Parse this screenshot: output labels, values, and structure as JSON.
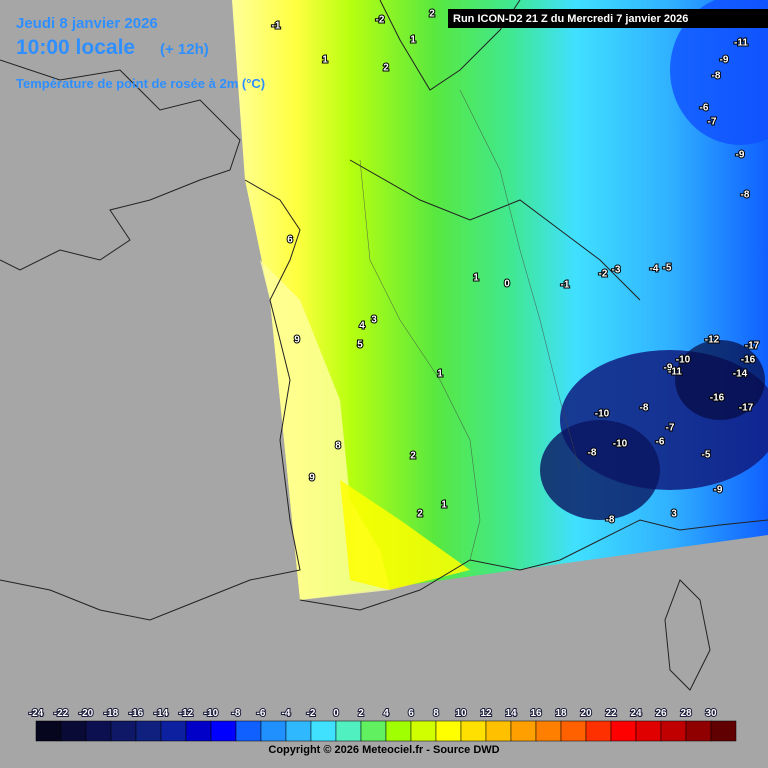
{
  "header": {
    "date": "Jeudi 8 janvier 2026",
    "time": "10:00 locale",
    "lead": "(+ 12h)",
    "variable": "Température de point de rosée à 2m (°C)"
  },
  "run_info": "Run ICON-D2 21 Z du Mercredi 7 janvier 2026",
  "contour_labels": [
    2,
    -1,
    1,
    1,
    2,
    -2,
    6,
    9,
    8,
    9,
    4,
    3,
    5,
    1,
    1,
    0,
    -1,
    -2,
    -3,
    -4,
    -5,
    -11,
    -9,
    -8,
    -6,
    -7,
    -9,
    -8,
    -10,
    -9,
    -11,
    -12,
    -17,
    -16,
    -14,
    -16,
    -17,
    -8,
    -10,
    -7,
    -10,
    -6,
    -8,
    -5,
    -9,
    -8,
    3,
    2,
    2,
    1
  ],
  "legend": {
    "ticks": [
      -24,
      -22,
      -20,
      -18,
      -16,
      -14,
      -12,
      -10,
      -8,
      -6,
      -4,
      -2,
      0,
      2,
      4,
      6,
      8,
      10,
      12,
      14,
      16,
      18,
      20,
      22,
      24,
      26,
      28,
      30
    ],
    "colors": [
      "#06061e",
      "#0a0a36",
      "#0c1050",
      "#0e1866",
      "#10207e",
      "#0c20a0",
      "#0000c8",
      "#0000ff",
      "#1060ff",
      "#2090ff",
      "#30b8ff",
      "#40e0ff",
      "#50f0c0",
      "#60f060",
      "#a0ff00",
      "#d0ff00",
      "#ffff00",
      "#ffe000",
      "#ffc000",
      "#ffa000",
      "#ff8000",
      "#ff6000",
      "#ff3000",
      "#ff0000",
      "#e00000",
      "#c00000",
      "#900000",
      "#600000"
    ]
  },
  "footer": "Copyright © 2026 Meteociel.fr - Source DWD"
}
